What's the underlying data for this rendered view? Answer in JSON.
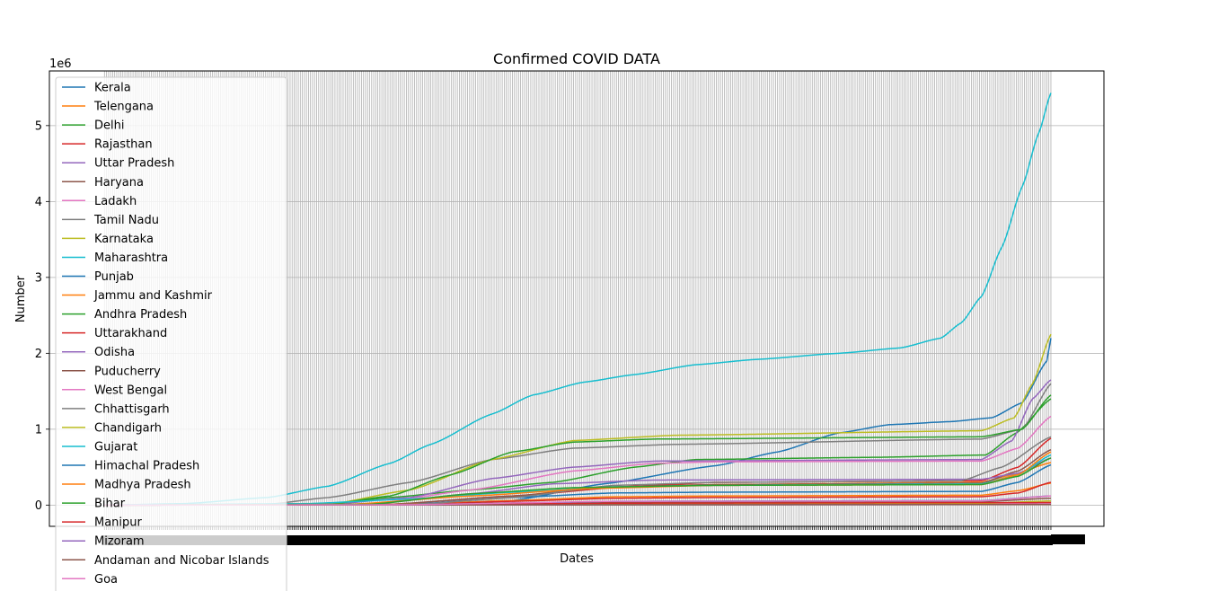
{
  "chart_data": {
    "type": "line",
    "title": "Confirmed COVID DATA",
    "xlabel": "Dates",
    "ylabel": "Number",
    "y_multiplier_label": "1e6",
    "y_ticks": [
      0,
      1,
      2,
      3,
      4,
      5
    ],
    "ylim": [
      -0.28,
      5.72
    ],
    "xlim": [
      -27,
      490
    ],
    "n_dates": 465,
    "grid": true,
    "legend_position": "upper-left",
    "series": [
      {
        "name": "Kerala",
        "color": "#1f77b4",
        "knots": [
          [
            0,
            0
          ],
          [
            140,
            0.005
          ],
          [
            200,
            0.06
          ],
          [
            245,
            0.28
          ],
          [
            300,
            0.52
          ],
          [
            330,
            0.7
          ],
          [
            360,
            0.95
          ],
          [
            385,
            1.06
          ],
          [
            415,
            1.1
          ],
          [
            435,
            1.15
          ],
          [
            450,
            1.35
          ],
          [
            462,
            1.9
          ],
          [
            464,
            2.2
          ]
        ]
      },
      {
        "name": "Telengana",
        "color": "#ff7f0e",
        "knots": [
          [
            0,
            0
          ],
          [
            150,
            0.005
          ],
          [
            190,
            0.08
          ],
          [
            230,
            0.2
          ],
          [
            260,
            0.25
          ],
          [
            300,
            0.27
          ],
          [
            430,
            0.3
          ],
          [
            445,
            0.4
          ],
          [
            464,
            0.56
          ]
        ]
      },
      {
        "name": "Delhi",
        "color": "#2ca02c",
        "knots": [
          [
            0,
            0
          ],
          [
            110,
            0.01
          ],
          [
            140,
            0.1
          ],
          [
            180,
            0.2
          ],
          [
            220,
            0.3
          ],
          [
            260,
            0.5
          ],
          [
            290,
            0.6
          ],
          [
            380,
            0.63
          ],
          [
            432,
            0.66
          ],
          [
            447,
            0.95
          ],
          [
            464,
            1.4
          ]
        ]
      },
      {
        "name": "Rajasthan",
        "color": "#d62728",
        "knots": [
          [
            0,
            0
          ],
          [
            140,
            0.01
          ],
          [
            200,
            0.12
          ],
          [
            260,
            0.25
          ],
          [
            300,
            0.3
          ],
          [
            430,
            0.32
          ],
          [
            448,
            0.5
          ],
          [
            464,
            0.88
          ]
        ]
      },
      {
        "name": "Uttar Pradesh",
        "color": "#9467bd",
        "knots": [
          [
            0,
            0
          ],
          [
            110,
            0.01
          ],
          [
            150,
            0.1
          ],
          [
            190,
            0.35
          ],
          [
            230,
            0.5
          ],
          [
            270,
            0.58
          ],
          [
            430,
            0.6
          ],
          [
            445,
            0.85
          ],
          [
            455,
            1.4
          ],
          [
            464,
            1.65
          ]
        ]
      },
      {
        "name": "Haryana",
        "color": "#8c564b",
        "knots": [
          [
            0,
            0
          ],
          [
            140,
            0.01
          ],
          [
            200,
            0.12
          ],
          [
            250,
            0.24
          ],
          [
            300,
            0.27
          ],
          [
            430,
            0.29
          ],
          [
            448,
            0.45
          ],
          [
            464,
            0.73
          ]
        ]
      },
      {
        "name": "Ladakh",
        "color": "#e377c2",
        "knots": [
          [
            0,
            0
          ],
          [
            150,
            0.002
          ],
          [
            250,
            0.01
          ],
          [
            464,
            0.018
          ]
        ]
      },
      {
        "name": "Tamil Nadu",
        "color": "#7f7f7f",
        "knots": [
          [
            0,
            0
          ],
          [
            80,
            0.01
          ],
          [
            110,
            0.1
          ],
          [
            150,
            0.3
          ],
          [
            190,
            0.6
          ],
          [
            230,
            0.75
          ],
          [
            280,
            0.8
          ],
          [
            430,
            0.87
          ],
          [
            450,
            1.0
          ],
          [
            464,
            1.6
          ]
        ]
      },
      {
        "name": "Karnataka",
        "color": "#bcbd22",
        "knots": [
          [
            0,
            0
          ],
          [
            110,
            0.01
          ],
          [
            150,
            0.2
          ],
          [
            190,
            0.6
          ],
          [
            230,
            0.85
          ],
          [
            280,
            0.92
          ],
          [
            430,
            0.98
          ],
          [
            446,
            1.15
          ],
          [
            455,
            1.6
          ],
          [
            464,
            2.25
          ]
        ]
      },
      {
        "name": "Maharashtra",
        "color": "#17becf",
        "knots": [
          [
            0,
            0
          ],
          [
            40,
            0.02
          ],
          [
            80,
            0.1
          ],
          [
            110,
            0.25
          ],
          [
            140,
            0.55
          ],
          [
            160,
            0.8
          ],
          [
            190,
            1.2
          ],
          [
            210,
            1.45
          ],
          [
            235,
            1.62
          ],
          [
            260,
            1.72
          ],
          [
            290,
            1.85
          ],
          [
            320,
            1.92
          ],
          [
            360,
            2.0
          ],
          [
            390,
            2.07
          ],
          [
            410,
            2.2
          ],
          [
            420,
            2.4
          ],
          [
            430,
            2.75
          ],
          [
            440,
            3.4
          ],
          [
            450,
            4.2
          ],
          [
            458,
            4.9
          ],
          [
            464,
            5.43
          ]
        ]
      },
      {
        "name": "Punjab",
        "color": "#1f77b4",
        "knots": [
          [
            0,
            0
          ],
          [
            150,
            0.01
          ],
          [
            200,
            0.1
          ],
          [
            250,
            0.16
          ],
          [
            300,
            0.17
          ],
          [
            430,
            0.18
          ],
          [
            448,
            0.3
          ],
          [
            464,
            0.53
          ]
        ]
      },
      {
        "name": "Jammu and Kashmir",
        "color": "#ff7f0e",
        "knots": [
          [
            0,
            0
          ],
          [
            150,
            0.01
          ],
          [
            200,
            0.06
          ],
          [
            250,
            0.11
          ],
          [
            300,
            0.12
          ],
          [
            430,
            0.13
          ],
          [
            448,
            0.19
          ],
          [
            464,
            0.29
          ]
        ]
      },
      {
        "name": "Andhra Pradesh",
        "color": "#2ca02c",
        "knots": [
          [
            0,
            0
          ],
          [
            110,
            0.01
          ],
          [
            140,
            0.12
          ],
          [
            170,
            0.4
          ],
          [
            200,
            0.7
          ],
          [
            230,
            0.83
          ],
          [
            270,
            0.87
          ],
          [
            430,
            0.9
          ],
          [
            450,
            1.0
          ],
          [
            464,
            1.45
          ]
        ]
      },
      {
        "name": "Uttarakhand",
        "color": "#d62728",
        "knots": [
          [
            0,
            0
          ],
          [
            150,
            0.005
          ],
          [
            200,
            0.05
          ],
          [
            250,
            0.09
          ],
          [
            300,
            0.1
          ],
          [
            430,
            0.11
          ],
          [
            448,
            0.16
          ],
          [
            464,
            0.3
          ]
        ]
      },
      {
        "name": "Odisha",
        "color": "#9467bd",
        "knots": [
          [
            0,
            0
          ],
          [
            130,
            0.01
          ],
          [
            180,
            0.15
          ],
          [
            220,
            0.28
          ],
          [
            270,
            0.33
          ],
          [
            430,
            0.34
          ],
          [
            448,
            0.42
          ],
          [
            464,
            0.62
          ]
        ]
      },
      {
        "name": "Puducherry",
        "color": "#8c564b",
        "knots": [
          [
            0,
            0
          ],
          [
            150,
            0.005
          ],
          [
            200,
            0.03
          ],
          [
            250,
            0.04
          ],
          [
            430,
            0.045
          ],
          [
            464,
            0.09
          ]
        ]
      },
      {
        "name": "West Bengal",
        "color": "#e377c2",
        "knots": [
          [
            0,
            0
          ],
          [
            130,
            0.01
          ],
          [
            180,
            0.2
          ],
          [
            230,
            0.45
          ],
          [
            270,
            0.55
          ],
          [
            300,
            0.57
          ],
          [
            430,
            0.58
          ],
          [
            448,
            0.75
          ],
          [
            464,
            1.17
          ]
        ]
      },
      {
        "name": "Chhattisgarh",
        "color": "#7f7f7f",
        "knots": [
          [
            0,
            0
          ],
          [
            150,
            0.005
          ],
          [
            200,
            0.1
          ],
          [
            250,
            0.26
          ],
          [
            300,
            0.3
          ],
          [
            420,
            0.32
          ],
          [
            440,
            0.5
          ],
          [
            464,
            0.9
          ]
        ]
      },
      {
        "name": "Chandigarh",
        "color": "#bcbd22",
        "knots": [
          [
            0,
            0
          ],
          [
            150,
            0.002
          ],
          [
            250,
            0.018
          ],
          [
            430,
            0.022
          ],
          [
            464,
            0.055
          ]
        ]
      },
      {
        "name": "Gujarat",
        "color": "#17becf",
        "knots": [
          [
            0,
            0
          ],
          [
            100,
            0.02
          ],
          [
            150,
            0.08
          ],
          [
            200,
            0.17
          ],
          [
            250,
            0.24
          ],
          [
            300,
            0.26
          ],
          [
            430,
            0.28
          ],
          [
            448,
            0.4
          ],
          [
            464,
            0.66
          ]
        ]
      },
      {
        "name": "Himachal Pradesh",
        "color": "#1f77b4",
        "knots": [
          [
            0,
            0
          ],
          [
            150,
            0.002
          ],
          [
            200,
            0.02
          ],
          [
            250,
            0.05
          ],
          [
            430,
            0.058
          ],
          [
            464,
            0.12
          ]
        ]
      },
      {
        "name": "Madhya Pradesh",
        "color": "#ff7f0e",
        "knots": [
          [
            0,
            0
          ],
          [
            120,
            0.01
          ],
          [
            180,
            0.12
          ],
          [
            240,
            0.22
          ],
          [
            300,
            0.26
          ],
          [
            430,
            0.27
          ],
          [
            448,
            0.4
          ],
          [
            464,
            0.7
          ]
        ]
      },
      {
        "name": "Bihar",
        "color": "#2ca02c",
        "knots": [
          [
            0,
            0
          ],
          [
            130,
            0.01
          ],
          [
            180,
            0.15
          ],
          [
            230,
            0.23
          ],
          [
            300,
            0.26
          ],
          [
            430,
            0.27
          ],
          [
            448,
            0.38
          ],
          [
            464,
            0.62
          ]
        ]
      },
      {
        "name": "Manipur",
        "color": "#d62728",
        "knots": [
          [
            0,
            0
          ],
          [
            150,
            0.002
          ],
          [
            250,
            0.025
          ],
          [
            464,
            0.033
          ]
        ]
      },
      {
        "name": "Mizoram",
        "color": "#9467bd",
        "knots": [
          [
            0,
            0
          ],
          [
            200,
            0.002
          ],
          [
            300,
            0.004
          ],
          [
            464,
            0.008
          ]
        ]
      },
      {
        "name": "Andaman and Nicobar Islands",
        "color": "#8c564b",
        "knots": [
          [
            0,
            0
          ],
          [
            150,
            0.002
          ],
          [
            464,
            0.007
          ]
        ]
      },
      {
        "name": "Goa",
        "color": "#e377c2",
        "knots": [
          [
            0,
            0
          ],
          [
            150,
            0.005
          ],
          [
            250,
            0.05
          ],
          [
            430,
            0.055
          ],
          [
            464,
            0.12
          ]
        ]
      }
    ]
  }
}
